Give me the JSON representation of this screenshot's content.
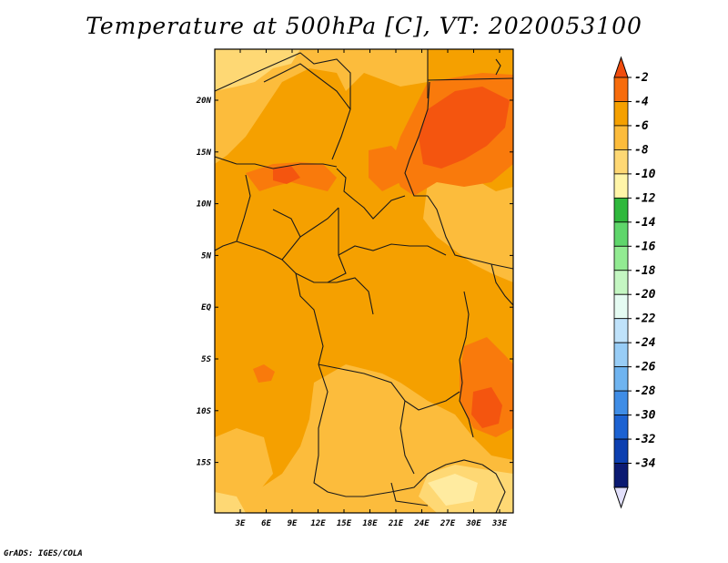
{
  "title": "Temperature at 500hPa [C], VT: 2020053100",
  "credit": "GrADS: IGES/COLA",
  "map": {
    "lat_ticks": [
      "20N",
      "15N",
      "10N",
      "5N",
      "EQ",
      "5S",
      "10S",
      "15S"
    ],
    "lon_ticks": [
      "3E",
      "6E",
      "9E",
      "12E",
      "15E",
      "18E",
      "21E",
      "24E",
      "27E",
      "30E",
      "33E"
    ],
    "field_colors": {
      "base": "#f5a000",
      "light": "#fcbc3c",
      "lighter": "#fed874",
      "palest": "#ffeba0",
      "warm": "#f97a0c",
      "hot": "#f4550f"
    }
  },
  "colorbar": {
    "labels": [
      "-2",
      "-4",
      "-6",
      "-8",
      "-10",
      "-12",
      "-14",
      "-16",
      "-18",
      "-20",
      "-22",
      "-24",
      "-26",
      "-28",
      "-30",
      "-32",
      "-34"
    ],
    "colors": [
      "#f04c0d",
      "#f76c0c",
      "#f5a000",
      "#fcbc3c",
      "#fed874",
      "#fff5a8",
      "#2fb83c",
      "#5fd66b",
      "#92eb92",
      "#c4f6c2",
      "#e5fbf2",
      "#bfe2fa",
      "#98cdf6",
      "#6fb4f0",
      "#3f8de6",
      "#1c62d2",
      "#0c3fb0",
      "#0b1a72",
      "#e2e0fb"
    ]
  }
}
